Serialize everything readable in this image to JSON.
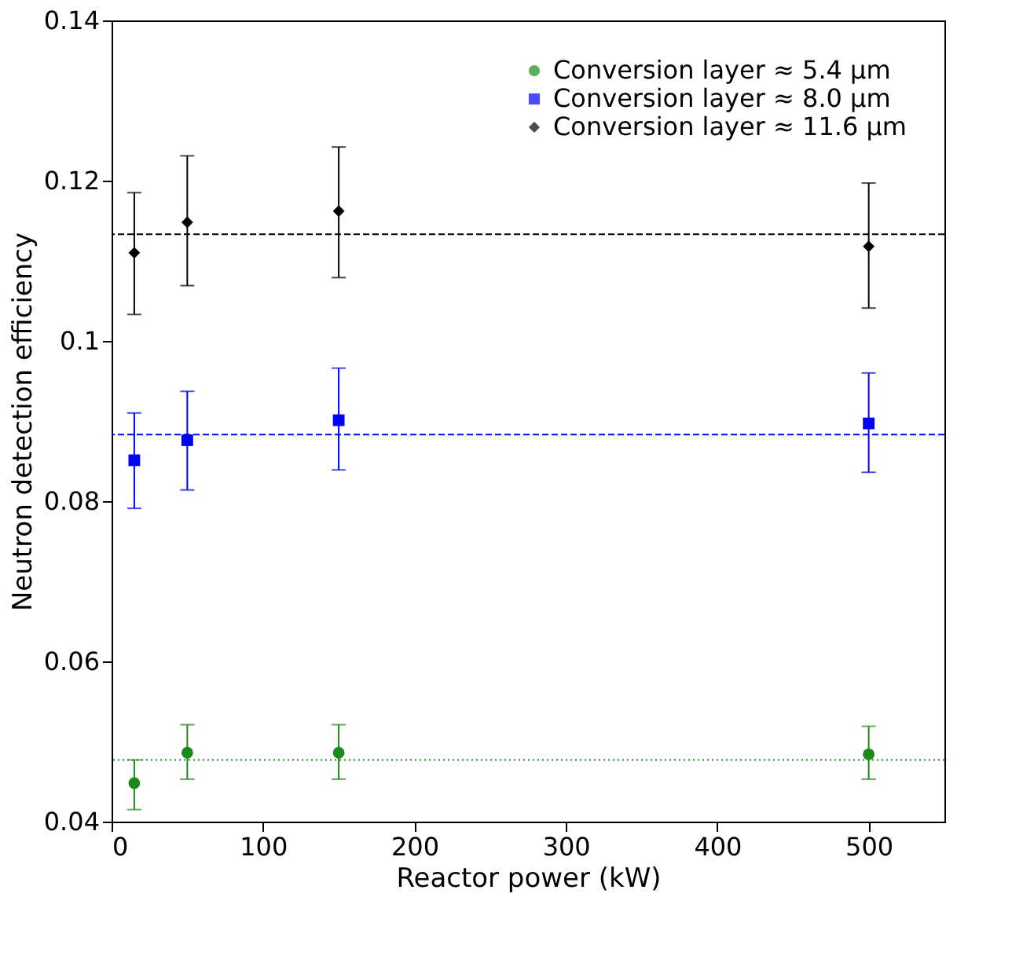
{
  "chart_data": {
    "type": "scatter",
    "xlabel": "Reactor power (kW)",
    "ylabel": "Neutron detection efficiency",
    "x": [
      15,
      50,
      150,
      500
    ],
    "series": [
      {
        "name": "Conversion layer ≈  5.4 µm",
        "color": "#1a8a1a",
        "marker": "circle",
        "values": [
          0.0448,
          0.0486,
          0.0486,
          0.0484
        ],
        "errors": [
          [
            0.0415,
            0.0477
          ],
          [
            0.0453,
            0.0521
          ],
          [
            0.0453,
            0.0521
          ],
          [
            0.0453,
            0.0519
          ]
        ]
      },
      {
        "name": "Conversion layer ≈  8.0 µm",
        "color": "#0000ff",
        "marker": "square",
        "values": [
          0.0851,
          0.0876,
          0.0901,
          0.0897
        ],
        "errors": [
          [
            0.0791,
            0.091
          ],
          [
            0.0814,
            0.0937
          ],
          [
            0.0839,
            0.0966
          ],
          [
            0.0836,
            0.096
          ]
        ]
      },
      {
        "name": "Conversion layer ≈ 11.6 µm",
        "color": "#000000",
        "marker": "diamond",
        "values": [
          0.111,
          0.1148,
          0.1162,
          0.1118
        ],
        "errors": [
          [
            0.1033,
            0.1185
          ],
          [
            0.1069,
            0.1231
          ],
          [
            0.1079,
            0.1242
          ],
          [
            0.1041,
            0.1197
          ]
        ]
      }
    ],
    "ref_lines": [
      {
        "axis": "y",
        "value": 0.0477,
        "color": "#1a8a1a",
        "line_style": "dotted"
      },
      {
        "axis": "y",
        "value": 0.0883,
        "color": "#0000ff",
        "line_style": "dashed"
      },
      {
        "axis": "y",
        "value": 0.1133,
        "color": "#000000",
        "line_style": "dashed"
      }
    ],
    "xlim": [
      0,
      550
    ],
    "xticks": [
      0,
      100,
      200,
      300,
      400,
      500
    ],
    "ylim": [
      0.04,
      0.14
    ],
    "yticks": [
      0.04,
      0.06,
      0.08,
      {
        "value": 0.1,
        "label": "0.1"
      },
      0.12,
      0.14
    ],
    "grid": false,
    "legend": "top right"
  }
}
